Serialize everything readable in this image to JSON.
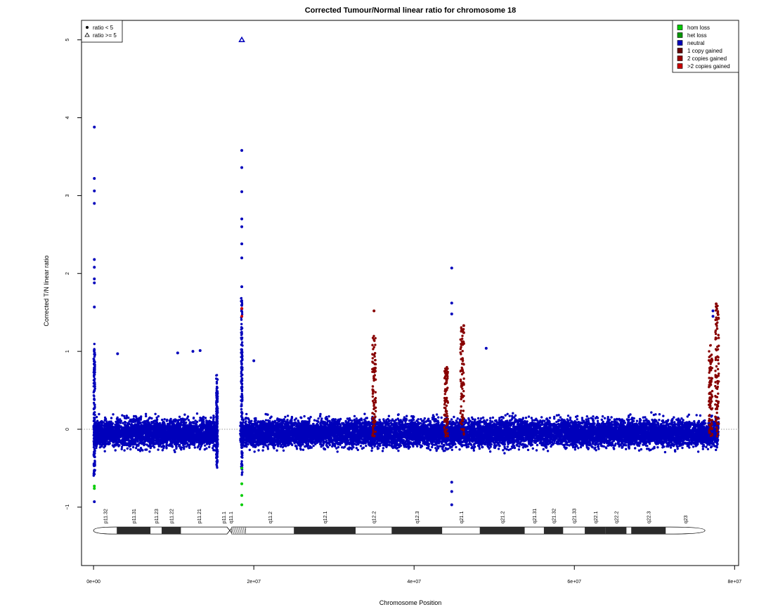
{
  "chart_data": {
    "type": "scatter",
    "title": "Corrected Tumour/Normal linear ratio for chromosome  18",
    "xlabel": "Chromosome Position",
    "ylabel": "Corrected T/N linear ratio",
    "xlim": [
      -1500000,
      80500000
    ],
    "ylim": [
      -1.75,
      5.25
    ],
    "xticks": [
      0,
      20000000,
      40000000,
      60000000,
      80000000
    ],
    "xtick_labels": [
      "0e+00",
      "2e+07",
      "4e+07",
      "6e+07",
      "8e+07"
    ],
    "yticks": [
      -1,
      0,
      1,
      2,
      3,
      4,
      5
    ],
    "ytick_labels": [
      "−1",
      "0",
      "1",
      "2",
      "3",
      "4",
      "5"
    ],
    "reference_line_y": 0,
    "legend_symbols": {
      "placement": "top-left",
      "entries": [
        {
          "label": "ratio < 5",
          "marker": "filled-circle"
        },
        {
          "label": "ratio >= 5",
          "marker": "open-triangle"
        }
      ]
    },
    "legend_states": {
      "placement": "top-right",
      "entries": [
        {
          "label": "hom loss",
          "color": "#00cc00"
        },
        {
          "label": "het loss",
          "color": "#009900"
        },
        {
          "label": "neutral",
          "color": "#0000bb"
        },
        {
          "label": "1 copy gained",
          "color": "#660000"
        },
        {
          "label": "2 copies gained",
          "color": "#990000"
        },
        {
          "label": ">2 copies gained",
          "color": "#cc0000"
        }
      ]
    },
    "series": [
      {
        "name": "neutral",
        "color": "#0000bb",
        "x_range": [
          0,
          78000000
        ],
        "gap": [
          15500000,
          18300000
        ],
        "y_center": -0.05,
        "y_spread": [
          -0.5,
          0.6
        ]
      },
      {
        "name": "1 copy gained",
        "color": "#880000"
      },
      {
        "name": "hom loss",
        "color": "#00cc00"
      }
    ],
    "gain_segments": [
      {
        "x": 35000000,
        "y": [
          -0.1,
          1.2
        ],
        "color": "#880000"
      },
      {
        "x": 44000000,
        "y": [
          -0.1,
          0.8
        ],
        "color": "#880000"
      },
      {
        "x": 46000000,
        "y": [
          -0.1,
          1.35
        ],
        "color": "#880000"
      },
      {
        "x": 77000000,
        "y": [
          -0.1,
          1.1
        ],
        "color": "#880000"
      },
      {
        "x": 77800000,
        "y": [
          -0.1,
          1.6
        ],
        "color": "#880000"
      }
    ],
    "notable_points": [
      {
        "x": 100000,
        "y": 3.88,
        "color": "#0000bb"
      },
      {
        "x": 100000,
        "y": 3.22,
        "color": "#0000bb"
      },
      {
        "x": 100000,
        "y": 3.06,
        "color": "#0000bb"
      },
      {
        "x": 100000,
        "y": 2.9,
        "color": "#0000bb"
      },
      {
        "x": 100000,
        "y": 2.18,
        "color": "#0000bb"
      },
      {
        "x": 100000,
        "y": 2.08,
        "color": "#0000bb"
      },
      {
        "x": 100000,
        "y": 1.93,
        "color": "#0000bb"
      },
      {
        "x": 100000,
        "y": 1.88,
        "color": "#0000bb"
      },
      {
        "x": 100000,
        "y": 1.57,
        "color": "#0000bb"
      },
      {
        "x": 100000,
        "y": -0.73,
        "color": "#00cc00"
      },
      {
        "x": 100000,
        "y": -0.76,
        "color": "#00cc00"
      },
      {
        "x": 100000,
        "y": -0.93,
        "color": "#0000bb"
      },
      {
        "x": 18500000,
        "y": 3.58,
        "color": "#0000bb"
      },
      {
        "x": 18500000,
        "y": 3.36,
        "color": "#0000bb"
      },
      {
        "x": 18500000,
        "y": 3.05,
        "color": "#0000bb"
      },
      {
        "x": 18500000,
        "y": 2.7,
        "color": "#0000bb"
      },
      {
        "x": 18500000,
        "y": 2.6,
        "color": "#0000bb"
      },
      {
        "x": 18500000,
        "y": 2.38,
        "color": "#0000bb"
      },
      {
        "x": 18500000,
        "y": 2.2,
        "color": "#0000bb"
      },
      {
        "x": 18500000,
        "y": 1.83,
        "color": "#0000bb"
      },
      {
        "x": 18500000,
        "y": 1.55,
        "color": "#cc0000"
      },
      {
        "x": 18500000,
        "y": 1.45,
        "color": "#cc0000"
      },
      {
        "x": 18500000,
        "y": -0.5,
        "color": "#00cc00"
      },
      {
        "x": 18500000,
        "y": -0.7,
        "color": "#00cc00"
      },
      {
        "x": 18500000,
        "y": -0.85,
        "color": "#00cc00"
      },
      {
        "x": 18500000,
        "y": -0.97,
        "color": "#00cc00"
      },
      {
        "x": 35000000,
        "y": 1.52,
        "color": "#880000"
      },
      {
        "x": 44700000,
        "y": 2.07,
        "color": "#0000bb"
      },
      {
        "x": 44700000,
        "y": 1.62,
        "color": "#0000bb"
      },
      {
        "x": 44700000,
        "y": 1.48,
        "color": "#0000bb"
      },
      {
        "x": 44700000,
        "y": -0.97,
        "color": "#0000bb"
      },
      {
        "x": 44700000,
        "y": -0.8,
        "color": "#0000bb"
      },
      {
        "x": 44700000,
        "y": -0.68,
        "color": "#0000bb"
      },
      {
        "x": 46200000,
        "y": 1.33,
        "color": "#880000"
      },
      {
        "x": 46200000,
        "y": 1.24,
        "color": "#880000"
      },
      {
        "x": 46200000,
        "y": 1.1,
        "color": "#880000"
      },
      {
        "x": 49000000,
        "y": 1.04,
        "color": "#0000bb"
      },
      {
        "x": 77300000,
        "y": 1.52,
        "color": "#0000bb"
      },
      {
        "x": 77300000,
        "y": 1.45,
        "color": "#0000bb"
      },
      {
        "x": 77700000,
        "y": 1.61,
        "color": "#880000"
      },
      {
        "x": 77700000,
        "y": 1.35,
        "color": "#880000"
      },
      {
        "x": 3000000,
        "y": 0.97,
        "color": "#0000bb"
      },
      {
        "x": 10500000,
        "y": 0.98,
        "color": "#0000bb"
      },
      {
        "x": 12400000,
        "y": 1.0,
        "color": "#0000bb"
      },
      {
        "x": 13300000,
        "y": 1.01,
        "color": "#0000bb"
      },
      {
        "x": 20000000,
        "y": 0.88,
        "color": "#0000bb"
      }
    ],
    "outliers_ge5": [
      {
        "x": 18500000,
        "y": 5.0,
        "color": "#0000bb",
        "marker": "open-triangle"
      }
    ],
    "ideogram": {
      "y": -1.3,
      "centromere": 17000000,
      "bands": [
        {
          "name": "p11.32",
          "start": 0,
          "end": 2900000,
          "stain": "gneg"
        },
        {
          "name": "p11.31",
          "start": 2900000,
          "end": 7100000,
          "stain": "gpos"
        },
        {
          "name": "p11.23",
          "start": 7100000,
          "end": 8500000,
          "stain": "gneg"
        },
        {
          "name": "p11.22",
          "start": 8500000,
          "end": 10900000,
          "stain": "gpos"
        },
        {
          "name": "p11.21",
          "start": 10900000,
          "end": 15400000,
          "stain": "gneg"
        },
        {
          "name": "p11.1",
          "start": 15400000,
          "end": 17000000,
          "stain": "acen"
        },
        {
          "name": "q11.1",
          "start": 17000000,
          "end": 17200000,
          "stain": "acen"
        },
        {
          "name": "",
          "start": 17200000,
          "end": 19000000,
          "stain": "gvar"
        },
        {
          "name": "q11.2",
          "start": 19000000,
          "end": 25000000,
          "stain": "gneg"
        },
        {
          "name": "q12.1",
          "start": 25000000,
          "end": 32700000,
          "stain": "gpos"
        },
        {
          "name": "q12.2",
          "start": 32700000,
          "end": 37200000,
          "stain": "gneg"
        },
        {
          "name": "q12.3",
          "start": 37200000,
          "end": 43500000,
          "stain": "gpos"
        },
        {
          "name": "q21.1",
          "start": 43500000,
          "end": 48200000,
          "stain": "gneg"
        },
        {
          "name": "q21.2",
          "start": 48200000,
          "end": 53800000,
          "stain": "gpos"
        },
        {
          "name": "q21.31",
          "start": 53800000,
          "end": 56200000,
          "stain": "gneg"
        },
        {
          "name": "q21.32",
          "start": 56200000,
          "end": 58600000,
          "stain": "gpos"
        },
        {
          "name": "q21.33",
          "start": 58600000,
          "end": 61300000,
          "stain": "gneg"
        },
        {
          "name": "q22.1",
          "start": 61300000,
          "end": 63900000,
          "stain": "gpos"
        },
        {
          "name": "q22.2",
          "start": 63900000,
          "end": 66500000,
          "stain": "gpos"
        },
        {
          "name": "",
          "start": 66500000,
          "end": 67100000,
          "stain": "gneg"
        },
        {
          "name": "q22.3",
          "start": 67100000,
          "end": 71400000,
          "stain": "gpos"
        },
        {
          "name": "q23",
          "start": 71400000,
          "end": 76300000,
          "stain": "gneg"
        }
      ]
    }
  }
}
